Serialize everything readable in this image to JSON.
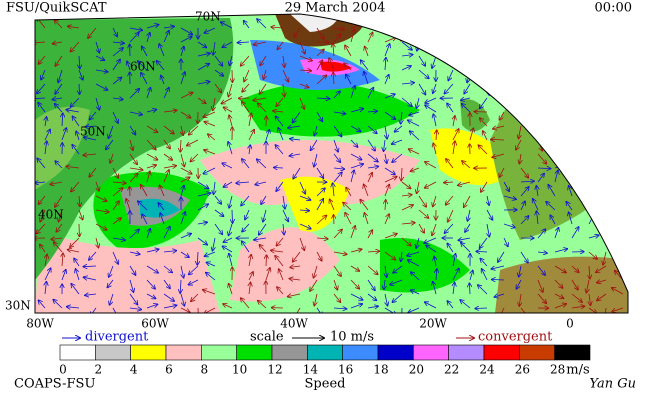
{
  "header": {
    "title": "FSU/QuikSCAT",
    "date": "29 March 2004",
    "time": "00:00"
  },
  "map": {
    "lat_labels": [
      "70N",
      "60N",
      "50N",
      "40N",
      "30N"
    ],
    "lon_labels": [
      "80W",
      "60W",
      "40W",
      "20W",
      "0"
    ]
  },
  "legend": {
    "divergent": "divergent",
    "scale": "scale",
    "scale_value": "10 m/s",
    "convergent": "convergent"
  },
  "colorbar": {
    "labels": [
      "0",
      "2",
      "4",
      "6",
      "8",
      "10",
      "12",
      "14",
      "16",
      "18",
      "20",
      "22",
      "24",
      "26",
      "28"
    ],
    "colors": [
      "#ffffff",
      "#c8c8c8",
      "#ffff00",
      "#ffc0c0",
      "#99ff99",
      "#00e000",
      "#969696",
      "#00b4b4",
      "#3c8cff",
      "#0000c8",
      "#ff64ff",
      "#b48cff",
      "#ff0000",
      "#c83c00",
      "#000000"
    ],
    "unit": "m/s",
    "title": "Speed"
  },
  "footer": {
    "org": "COAPS-FSU",
    "author": "Yan Gu"
  }
}
